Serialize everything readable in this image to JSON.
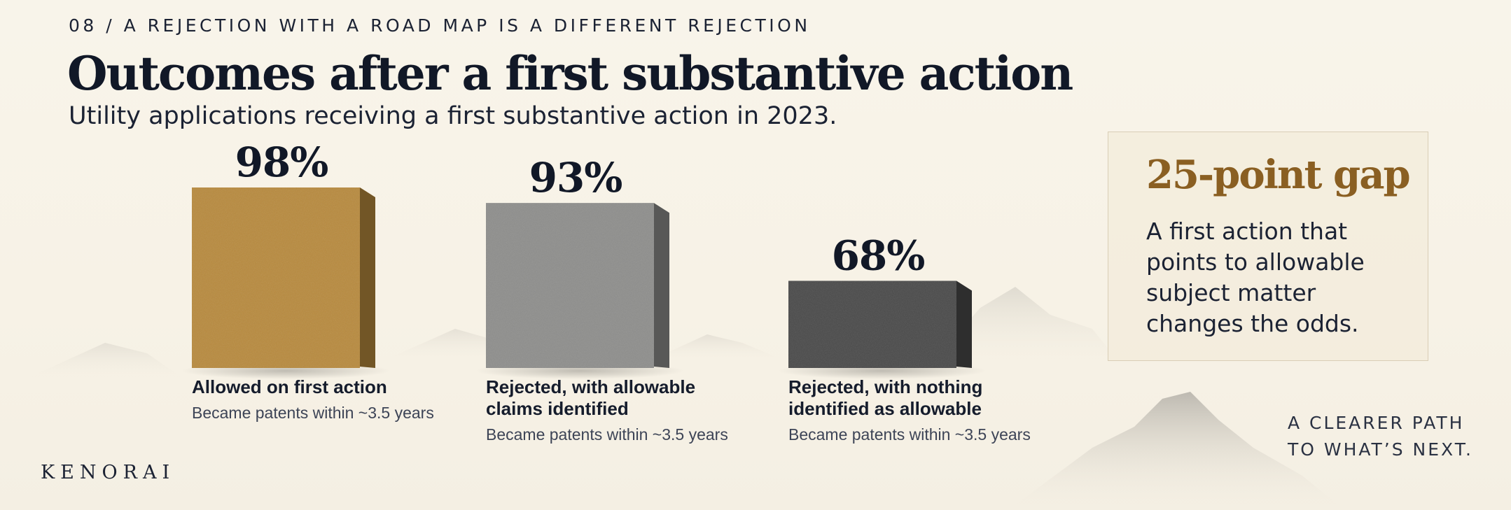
{
  "header": {
    "eyebrow": "08 / A REJECTION WITH A ROAD MAP IS A DIFFERENT REJECTION",
    "title": "Outcomes after a first substantive action",
    "subtitle": "Utility applications receiving a first substantive action in 2023."
  },
  "chart_data": {
    "type": "bar",
    "title": "Outcomes after a first substantive action",
    "subtitle": "Utility applications receiving a first substantive action in 2023.",
    "unit": "%",
    "ylim": [
      0,
      100
    ],
    "grid": false,
    "categories": [
      "Allowed on first action",
      "Rejected, with allowable claims identified",
      "Rejected, with nothing identified as allowable"
    ],
    "category_lines": [
      [
        "Allowed on first action"
      ],
      [
        "Rejected, with allowable",
        "claims identified"
      ],
      [
        "Rejected, with nothing",
        "identified as allowable"
      ]
    ],
    "values": [
      98,
      93,
      68
    ],
    "value_labels": [
      "98%",
      "93%",
      "68%"
    ],
    "notes": [
      "Became patents within ~3.5 years",
      "Became patents within ~3.5 years",
      "Became patents within ~3.5 years"
    ],
    "colors": [
      "#b88a3e",
      "#8e8e8c",
      "#4a4a4a"
    ]
  },
  "callout": {
    "title": "25-point gap",
    "body": "A first action that points to allowable subject matter changes the odds."
  },
  "tagline": {
    "line1": "A CLEARER PATH",
    "line2": "TO WHAT’S NEXT."
  },
  "brand": "KENORAI"
}
